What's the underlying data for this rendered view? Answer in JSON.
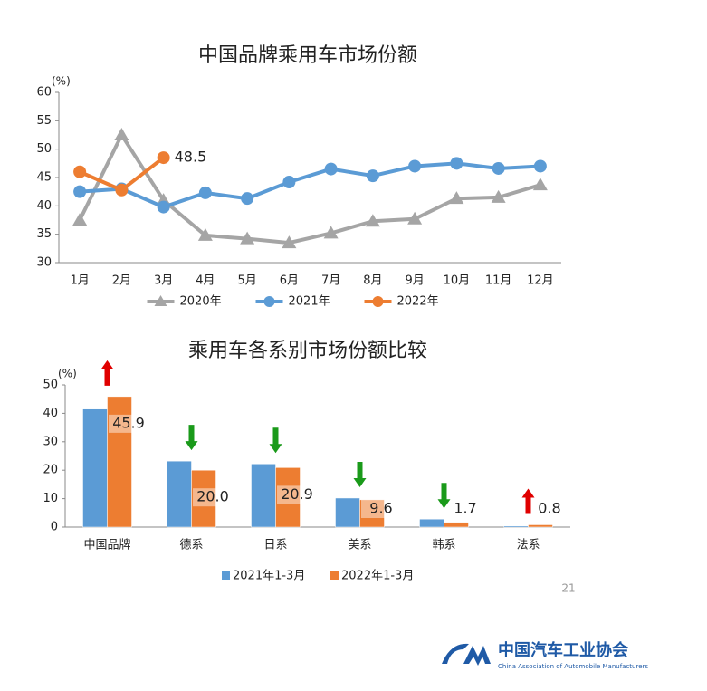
{
  "chart_data": [
    {
      "type": "line",
      "title": "中国品牌乘用车市场份额",
      "y_label": "(%)",
      "categories": [
        "1月",
        "2月",
        "3月",
        "4月",
        "5月",
        "6月",
        "7月",
        "8月",
        "9月",
        "10月",
        "11月",
        "12月"
      ],
      "series": [
        {
          "name": "2020年",
          "color": "#a5a5a5",
          "marker": "triangle",
          "values": [
            37.5,
            52.5,
            41,
            34.8,
            34.2,
            33.5,
            35.2,
            37.3,
            37.7,
            41.3,
            41.5,
            43.7
          ]
        },
        {
          "name": "2021年",
          "color": "#5b9bd5",
          "marker": "circle",
          "values": [
            42.5,
            43,
            39.8,
            42.3,
            41.3,
            44.2,
            46.5,
            45.3,
            47,
            47.5,
            46.6,
            47
          ]
        },
        {
          "name": "2022年",
          "color": "#ed7d31",
          "marker": "circle",
          "values": [
            46,
            42.8,
            48.5,
            null,
            null,
            null,
            null,
            null,
            null,
            null,
            null,
            null
          ],
          "value_labels": [
            null,
            null,
            "48.5",
            null,
            null,
            null,
            null,
            null,
            null,
            null,
            null,
            null
          ]
        }
      ],
      "ylim": [
        30,
        60
      ],
      "yticks": [
        30,
        35,
        40,
        45,
        50,
        55,
        60
      ],
      "legend": "bottom"
    },
    {
      "type": "bar",
      "title": "乘用车各系别市场份额比较",
      "y_label": "(%)",
      "categories": [
        "中国品牌",
        "德系",
        "日系",
        "美系",
        "韩系",
        "法系"
      ],
      "series": [
        {
          "name": "2021年1-3月",
          "color": "#5b9bd5",
          "values": [
            41.5,
            23.2,
            22.2,
            10.2,
            2.8,
            0.4
          ]
        },
        {
          "name": "2022年1-3月",
          "color": "#ed7d31",
          "values": [
            45.9,
            20.0,
            20.9,
            9.6,
            1.7,
            0.8
          ],
          "value_labels": [
            "45.9",
            "20.0",
            "20.9",
            "9.6",
            "1.7",
            "0.8"
          ]
        }
      ],
      "ylim": [
        0,
        50
      ],
      "yticks": [
        0,
        10,
        20,
        30,
        40,
        50
      ],
      "legend": "bottom"
    }
  ],
  "footer": {
    "page_number": "21",
    "org_name": "中国汽车工业协会",
    "org_name_en": "China Association of Automobile Manufacturers"
  }
}
